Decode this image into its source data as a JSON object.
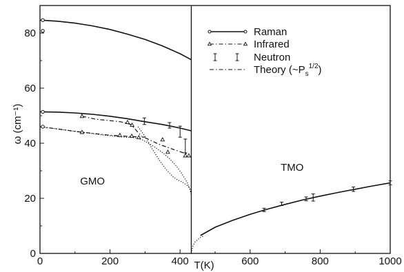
{
  "chart_data": {
    "type": "line",
    "title": "",
    "xlabel": "T(K)",
    "ylabel": "ω (cm⁻¹)",
    "xlim": [
      0,
      1000
    ],
    "ylim": [
      0,
      90
    ],
    "xticks": [
      0,
      200,
      400,
      600,
      800,
      1000
    ],
    "yticks": [
      0,
      20,
      40,
      60,
      80
    ],
    "grid": false,
    "legend_position": "top-right",
    "legend": [
      {
        "label": "Raman",
        "style": "solid-circle"
      },
      {
        "label": "Infrared",
        "style": "dashdot-triangle"
      },
      {
        "label": "Neutron",
        "style": "errorbar"
      },
      {
        "label": "Theory (~P",
        "suffix": "s",
        "exponent": "1/2",
        "close": ")",
        "style": "dashdot"
      }
    ],
    "regions": [
      {
        "label": "GMO",
        "x": 150,
        "y": 25
      },
      {
        "label": "TMO",
        "x": 720,
        "y": 30
      }
    ],
    "phase_transition_T": 432,
    "series": [
      {
        "label": "Raman",
        "curves": [
          {
            "style": "solid",
            "x": [
              0,
              50,
              100,
              150,
              200,
              250,
              300,
              350,
              400,
              432
            ],
            "y": [
              84.7,
              84.3,
              83.6,
              82.6,
              81.3,
              79.6,
              77.7,
              75.3,
              72.5,
              70.3
            ]
          },
          {
            "style": "solid",
            "x": [
              0,
              50,
              100,
              150,
              200,
              250,
              300,
              350,
              400,
              432
            ],
            "y": [
              51.4,
              51.3,
              51.0,
              50.5,
              49.8,
              48.9,
              47.8,
              46.8,
              45.5,
              44.5
            ]
          }
        ],
        "points": [
          {
            "x": 8,
            "y": 84.7
          },
          {
            "x": 8,
            "y": 80.8
          },
          {
            "x": 8,
            "y": 51.4
          },
          {
            "x": 8,
            "y": 46.0
          }
        ]
      },
      {
        "label": "Infrared",
        "curves": [
          {
            "style": "dashdot",
            "x": [
              120,
              160,
              200,
              230,
              260,
              290
            ],
            "y": [
              49.8,
              48.7,
              48.2,
              47.8,
              46.8,
              42.5
            ]
          },
          {
            "style": "dashdot",
            "x": [
              0,
              50,
              100,
              150,
              200,
              250,
              300
            ],
            "y": [
              46.0,
              45.2,
              44.3,
              43.6,
              42.9,
              42.5,
              42.2
            ]
          },
          {
            "style": "dashdot",
            "x": [
              300,
              340,
              380,
              410,
              425
            ],
            "y": [
              42.0,
              39.6,
              37.8,
              36.5,
              36.0
            ]
          }
        ],
        "points": [
          {
            "x": 120,
            "y": 49.8
          },
          {
            "x": 250,
            "y": 47.6
          },
          {
            "x": 263,
            "y": 46.6
          },
          {
            "x": 120,
            "y": 44.0
          },
          {
            "x": 228,
            "y": 42.9
          },
          {
            "x": 262,
            "y": 42.6
          },
          {
            "x": 282,
            "y": 42.1
          },
          {
            "x": 350,
            "y": 41.3
          },
          {
            "x": 365,
            "y": 36.8
          },
          {
            "x": 415,
            "y": 35.5
          },
          {
            "x": 425,
            "y": 35.5
          }
        ]
      },
      {
        "label": "Neutron",
        "points": [
          {
            "x": 298,
            "y": 48.0,
            "err": 1.2
          },
          {
            "x": 370,
            "y": 46.5,
            "err": 1.0
          },
          {
            "x": 400,
            "y": 44.2,
            "err": 2.0
          },
          {
            "x": 415,
            "y": 39.0,
            "err": 2.5
          },
          {
            "x": 640,
            "y": 15.8,
            "err": 0.6
          },
          {
            "x": 690,
            "y": 18.0,
            "err": 0.6
          },
          {
            "x": 760,
            "y": 19.8,
            "err": 0.7
          },
          {
            "x": 780,
            "y": 20.3,
            "err": 1.3
          },
          {
            "x": 895,
            "y": 23.3,
            "err": 0.8
          },
          {
            "x": 1000,
            "y": 25.6,
            "err": 0.7
          }
        ]
      },
      {
        "label": "Theory",
        "curves": [
          {
            "style": "dotted",
            "x": [
              0,
              60,
              120,
              180,
              240,
              270,
              290,
              310,
              330,
              350,
              370,
              390,
              405,
              420,
              428,
              432
            ],
            "y": [
              46.0,
              45.0,
              44.0,
              43.0,
              42.2,
              42.0,
              41.4,
              40.0,
              38.4,
              36.6,
              34.4,
              31.6,
              29.0,
              25.8,
              23.5,
              21.5
            ]
          },
          {
            "style": "dotted",
            "x": [
              280,
              300,
              320,
              340,
              360,
              380,
              395,
              405,
              415,
              422,
              428,
              432
            ],
            "y": [
              46.0,
              42.5,
              38.0,
              34.0,
              30.5,
              27.8,
              26.5,
              26.0,
              25.2,
              24.5,
              23.5,
              21.5
            ]
          },
          {
            "style": "dotted",
            "x": [
              432,
              436,
              442,
              450,
              458,
              466
            ],
            "y": [
              0,
              2.5,
              4.0,
              5.0,
              5.8,
              6.3
            ]
          }
        ]
      },
      {
        "label": "TMO",
        "curves": [
          {
            "style": "solid",
            "x": [
              458,
              500,
              550,
              600,
              650,
              700,
              750,
              800,
              850,
              900,
              950,
              1000
            ],
            "y": [
              6.5,
              9.5,
              12.0,
              14.2,
              16.1,
              17.8,
              19.4,
              20.8,
              22.1,
              23.3,
              24.5,
              25.6
            ]
          }
        ]
      }
    ]
  }
}
